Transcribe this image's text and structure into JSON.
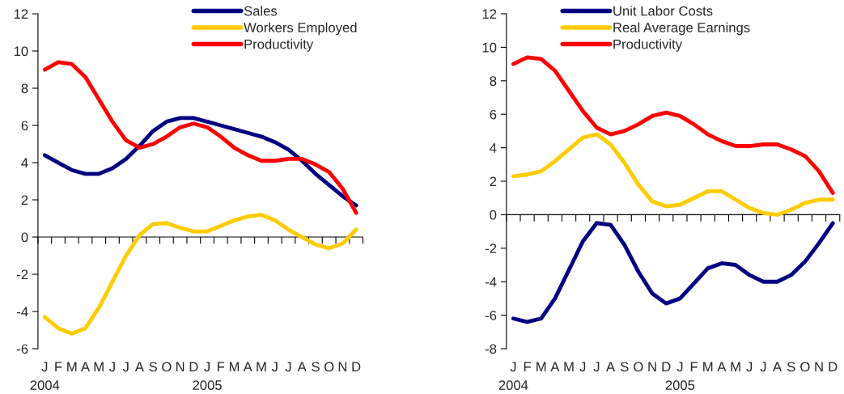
{
  "chart_data": [
    {
      "type": "line",
      "categories": [
        "J\n2004",
        "F",
        "M",
        "A",
        "M",
        "J",
        "J",
        "A",
        "S",
        "O",
        "N",
        "D",
        "J\n2005",
        "F",
        "M",
        "A",
        "M",
        "J",
        "J",
        "A",
        "S",
        "O",
        "N",
        "D"
      ],
      "ylim": [
        -6,
        12
      ],
      "yticks": [
        -6,
        -4,
        -2,
        0,
        2,
        4,
        6,
        8,
        10,
        12
      ],
      "legend": "top right",
      "marker": "none",
      "line_style": "solid",
      "series": [
        {
          "name": "Sales",
          "color": "#000080",
          "values": [
            4.4,
            4.0,
            3.6,
            3.4,
            3.4,
            3.7,
            4.2,
            4.9,
            5.7,
            6.2,
            6.4,
            6.4,
            6.2,
            6.0,
            5.8,
            5.6,
            5.4,
            5.1,
            4.7,
            4.1,
            3.4,
            2.8,
            2.2,
            1.7
          ]
        },
        {
          "name": "Workers Employed",
          "color": "#ffcc00",
          "values": [
            -4.3,
            -4.9,
            -5.2,
            -4.9,
            -3.8,
            -2.4,
            -1.0,
            0.1,
            0.7,
            0.75,
            0.5,
            0.3,
            0.3,
            0.6,
            0.9,
            1.1,
            1.2,
            0.9,
            0.4,
            0.0,
            -0.4,
            -0.6,
            -0.35,
            0.4
          ]
        },
        {
          "name": "Productivity",
          "color": "#ff0000",
          "values": [
            9.0,
            9.4,
            9.3,
            8.6,
            7.4,
            6.2,
            5.2,
            4.8,
            5.0,
            5.4,
            5.9,
            6.1,
            5.9,
            5.4,
            4.8,
            4.4,
            4.1,
            4.1,
            4.2,
            4.2,
            3.9,
            3.5,
            2.6,
            1.3
          ]
        }
      ]
    },
    {
      "type": "line",
      "categories": [
        "J\n2004",
        "F",
        "M",
        "A",
        "M",
        "J",
        "J",
        "A",
        "S",
        "O",
        "N",
        "D",
        "J\n2005",
        "F",
        "M",
        "A",
        "M",
        "J",
        "J",
        "A",
        "S",
        "O",
        "N",
        "D"
      ],
      "ylim": [
        -8,
        12
      ],
      "yticks": [
        -8,
        -6,
        -4,
        -2,
        0,
        2,
        4,
        6,
        8,
        10,
        12
      ],
      "legend": "top",
      "marker": "none",
      "line_style": "solid",
      "series": [
        {
          "name": "Unit Labor Costs",
          "color": "#000080",
          "values": [
            -6.2,
            -6.4,
            -6.2,
            -5.0,
            -3.3,
            -1.6,
            -0.5,
            -0.6,
            -1.8,
            -3.4,
            -4.7,
            -5.3,
            -5.0,
            -4.1,
            -3.2,
            -2.9,
            -3.0,
            -3.6,
            -4.0,
            -4.0,
            -3.6,
            -2.8,
            -1.7,
            -0.5
          ]
        },
        {
          "name": "Real Average Earnings",
          "color": "#ffcc00",
          "values": [
            2.3,
            2.4,
            2.6,
            3.2,
            3.9,
            4.6,
            4.8,
            4.2,
            3.1,
            1.8,
            0.8,
            0.5,
            0.6,
            1.0,
            1.4,
            1.4,
            0.9,
            0.4,
            0.1,
            0.0,
            0.3,
            0.7,
            0.9,
            0.9
          ]
        },
        {
          "name": "Productivity",
          "color": "#ff0000",
          "values": [
            9.0,
            9.4,
            9.3,
            8.6,
            7.4,
            6.2,
            5.2,
            4.8,
            5.0,
            5.4,
            5.9,
            6.1,
            5.9,
            5.4,
            4.8,
            4.4,
            4.1,
            4.1,
            4.2,
            4.2,
            3.9,
            3.5,
            2.6,
            1.3
          ]
        }
      ]
    }
  ]
}
